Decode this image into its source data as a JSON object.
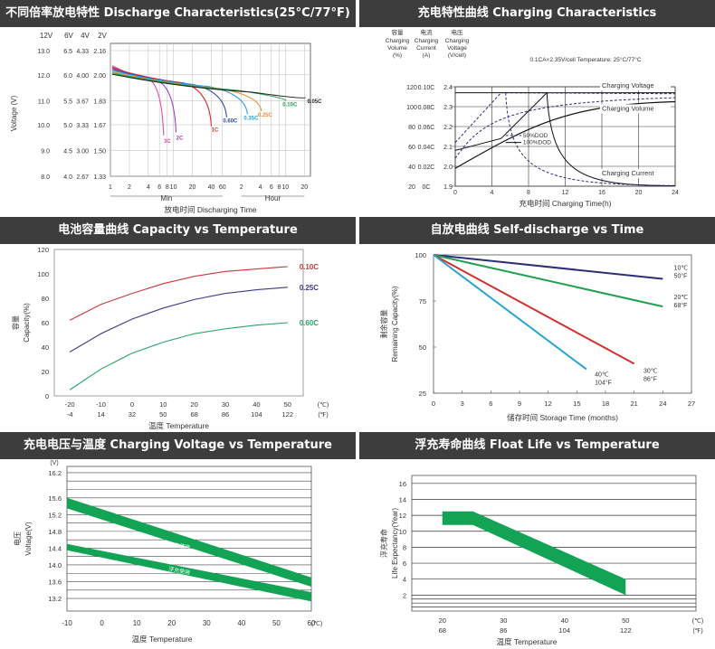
{
  "panels": [
    {
      "id": "p1",
      "title": "不同倍率放电特性 Discharge Characteristics(25°C/77°F)"
    },
    {
      "id": "p2",
      "title": "充电特性曲线 Charging Characteristics"
    },
    {
      "id": "p3",
      "title": "电池容量曲线 Capacity vs Temperature"
    },
    {
      "id": "p4",
      "title": "自放电曲线 Self-discharge vs Time"
    },
    {
      "id": "p5",
      "title": "充电电压与温度 Charging Voltage vs Temperature"
    },
    {
      "id": "p6",
      "title": "浮充寿命曲线 Float Life vs Temperature"
    }
  ],
  "chart_data": [
    {
      "id": "discharge",
      "type": "line",
      "title": "不同倍率放电特性 Discharge Characteristics(25°C/77°F)",
      "xlabel": "放电时间 Discharging  Time",
      "ylabel": "Voltage (V)",
      "voltage_columns": [
        {
          "header": "12V",
          "ticks": [
            "13.0",
            "12.0",
            "11.0",
            "10.0",
            "9.0",
            "8.0"
          ]
        },
        {
          "header": "6V",
          "ticks": [
            "6.5",
            "6.0",
            "5.5",
            "5.0",
            "4.5",
            "4.0"
          ]
        },
        {
          "header": "4V",
          "ticks": [
            "4.33",
            "4.00",
            "3.67",
            "3.33",
            "3.00",
            "2.67"
          ]
        },
        {
          "header": "2V",
          "ticks": [
            "2.16",
            "2.00",
            "1.83",
            "1.67",
            "1.50",
            "1.33"
          ]
        }
      ],
      "y_axis_volts_per_cell": [
        2.16,
        2.0,
        1.83,
        1.67,
        1.5,
        1.33
      ],
      "x_ticks": [
        "1",
        "2",
        "4",
        "6",
        "8",
        "10",
        "20",
        "40",
        "60",
        "2",
        "4",
        "6",
        "8",
        "10",
        "20"
      ],
      "x_ticks_min_values": [
        1,
        2,
        4,
        6,
        8,
        10,
        20,
        40,
        60,
        120,
        240,
        360,
        480,
        600,
        1200
      ],
      "x_groups": [
        "Min",
        "Hour"
      ],
      "series": [
        {
          "name": "3C",
          "color": "#e54aa0",
          "end_min": 7,
          "end_v": 1.6
        },
        {
          "name": "2C",
          "color": "#9b3fbf",
          "end_min": 11,
          "end_v": 1.62
        },
        {
          "name": "1C",
          "color": "#d93030",
          "end_min": 40,
          "end_v": 1.66
        },
        {
          "name": "0.60C",
          "color": "#2b4aa8",
          "end_min": 70,
          "end_v": 1.72
        },
        {
          "name": "0.35C",
          "color": "#2aa0d8",
          "end_min": 150,
          "end_v": 1.74
        },
        {
          "name": "0.25C",
          "color": "#e8902a",
          "end_min": 250,
          "end_v": 1.76
        },
        {
          "name": "0.10C",
          "color": "#21a050",
          "end_min": 620,
          "end_v": 1.83
        },
        {
          "name": "0.05C",
          "color": "#222222",
          "end_min": 1250,
          "end_v": 1.85
        }
      ]
    },
    {
      "id": "charging",
      "type": "line",
      "title": "充电特性曲线 Charging Characteristics",
      "xlabel": "充电时间 Charging Time(h)",
      "condition_label": "0.1CA×2.35V/cell  Temperature: 25°C/77°C",
      "col_headers": [
        {
          "cn": "容量",
          "en": [
            "Charging",
            "Volume",
            "(%)"
          ]
        },
        {
          "cn": "电流",
          "en": [
            "Charging",
            "Current",
            "(A)"
          ]
        },
        {
          "cn": "电压",
          "en": [
            "Charging",
            "Voltage",
            "(V/cell)"
          ]
        }
      ],
      "volume_ticks": [
        "120",
        "100",
        "80",
        "60",
        "40",
        "20"
      ],
      "current_ticks": [
        "0.10C",
        "0.08C",
        "0.06C",
        "0.04C",
        "0.02C",
        "0C"
      ],
      "voltage_ticks": [
        "2.4",
        "2.3",
        "2.2",
        "2.1",
        "2.0",
        "1.9"
      ],
      "x_ticks": [
        "0",
        "4",
        "8",
        "12",
        "16",
        "20",
        "24"
      ],
      "legend": [
        "50%DOD",
        "100%DOD"
      ],
      "annotations": [
        "Charging Voltage",
        "Charging Volume",
        "Charging Current"
      ],
      "xlim": [
        0,
        24
      ],
      "ylim_voltage": [
        1.9,
        2.4
      ]
    },
    {
      "id": "capacity",
      "type": "line",
      "title": "电池容量曲线 Capacity vs Temperature",
      "ylabel_cn": "容量",
      "ylabel": "Capacity(%)",
      "xlabel": "温度 Temperature",
      "x_ticks_c": [
        "-20",
        "-10",
        "0",
        "10",
        "20",
        "30",
        "40",
        "50"
      ],
      "x_ticks_f": [
        "-4",
        "14",
        "32",
        "50",
        "68",
        "86",
        "104",
        "122"
      ],
      "unit_c": "(℃)",
      "unit_f": "(℉)",
      "y_ticks": [
        "0",
        "20",
        "40",
        "60",
        "80",
        "100",
        "120"
      ],
      "x": [
        -20,
        -10,
        0,
        10,
        20,
        30,
        40,
        50
      ],
      "series": [
        {
          "name": "0.10C",
          "color": "#c8383a",
          "values": [
            62,
            75,
            84,
            92,
            98,
            102,
            104,
            106
          ]
        },
        {
          "name": "0.25C",
          "color": "#3a3a8c",
          "values": [
            36,
            51,
            63,
            72,
            79,
            84,
            87,
            89
          ]
        },
        {
          "name": "0.60C",
          "color": "#2aa06a",
          "values": [
            5,
            22,
            35,
            44,
            51,
            55,
            58,
            60
          ]
        }
      ],
      "xlim": [
        -20,
        50
      ],
      "ylim": [
        0,
        120
      ]
    },
    {
      "id": "selfdischarge",
      "type": "line",
      "title": "自放电曲线 Self-discharge vs Time",
      "ylabel_cn": "剩余容量",
      "ylabel": "Remaining Capacity(%)",
      "xlabel": "储存时间 Storage Time (months)",
      "x_ticks": [
        "0",
        "3",
        "6",
        "9",
        "12",
        "15",
        "18",
        "21",
        "24",
        "27"
      ],
      "y_ticks": [
        "25",
        "50",
        "75",
        "100"
      ],
      "series": [
        {
          "label": [
            "10℃",
            "50°F"
          ],
          "color": "#2b2f7a",
          "x": [
            0,
            24
          ],
          "y": [
            100,
            87
          ]
        },
        {
          "label": [
            "20℃",
            "68°F"
          ],
          "color": "#21a050",
          "x": [
            0,
            24
          ],
          "y": [
            100,
            72
          ]
        },
        {
          "label": [
            "30℃",
            "86°F"
          ],
          "color": "#d32f2f",
          "x": [
            0,
            21
          ],
          "y": [
            100,
            41
          ]
        },
        {
          "label": [
            "40℃",
            "104°F"
          ],
          "color": "#27a3d8",
          "x": [
            0,
            16
          ],
          "y": [
            100,
            38
          ]
        }
      ],
      "xlim": [
        0,
        27
      ],
      "ylim": [
        25,
        100
      ]
    },
    {
      "id": "chargevoltage",
      "type": "area",
      "title": "充电电压与温度 Charging Voltage vs Temperature",
      "unit_v": "(V)",
      "ylabel_cn": "电压",
      "ylabel": "Voltage(V)",
      "xlabel": "温度 Temperature",
      "unit_c": "(℃)",
      "y_ticks": [
        "13.2",
        "13.6",
        "14.0",
        "14.4",
        "14.8",
        "15.2",
        "15.6",
        "16.0",
        "16.2"
      ],
      "x_ticks": [
        "-10",
        "0",
        "10",
        "20",
        "30",
        "40",
        "50",
        "60"
      ],
      "bands": [
        {
          "name": "均充使用",
          "x": [
            -10,
            60
          ],
          "upper": [
            15.6,
            13.7
          ],
          "lower": [
            15.35,
            13.48
          ]
        },
        {
          "name": "浮充使用",
          "x": [
            -10,
            60
          ],
          "upper": [
            14.5,
            13.35
          ],
          "lower": [
            14.35,
            13.13
          ]
        }
      ],
      "xlim": [
        -10,
        60
      ],
      "ylim": [
        12.8,
        16.4
      ]
    },
    {
      "id": "floatlife",
      "type": "area",
      "title": "浮充寿命曲线 Float Life vs Temperature",
      "ylabel_cn": "浮充寿命",
      "ylabel": "Life Expectancy(Year)",
      "xlabel": "温度 Temperature",
      "y_ticks": [
        "2",
        "4",
        "6",
        "8",
        "10",
        "12",
        "14",
        "16"
      ],
      "x_ticks_c": [
        "20",
        "30",
        "40",
        "50"
      ],
      "x_ticks_f": [
        "68",
        "86",
        "104",
        "122"
      ],
      "unit_c": "(℃)",
      "unit_f": "(℉)",
      "band": {
        "x": [
          20,
          25,
          50
        ],
        "upper": [
          12.5,
          12.5,
          4
        ],
        "lower": [
          10.8,
          10.8,
          2
        ]
      },
      "xlim": [
        15,
        55
      ],
      "ylim": [
        0,
        17
      ]
    }
  ]
}
